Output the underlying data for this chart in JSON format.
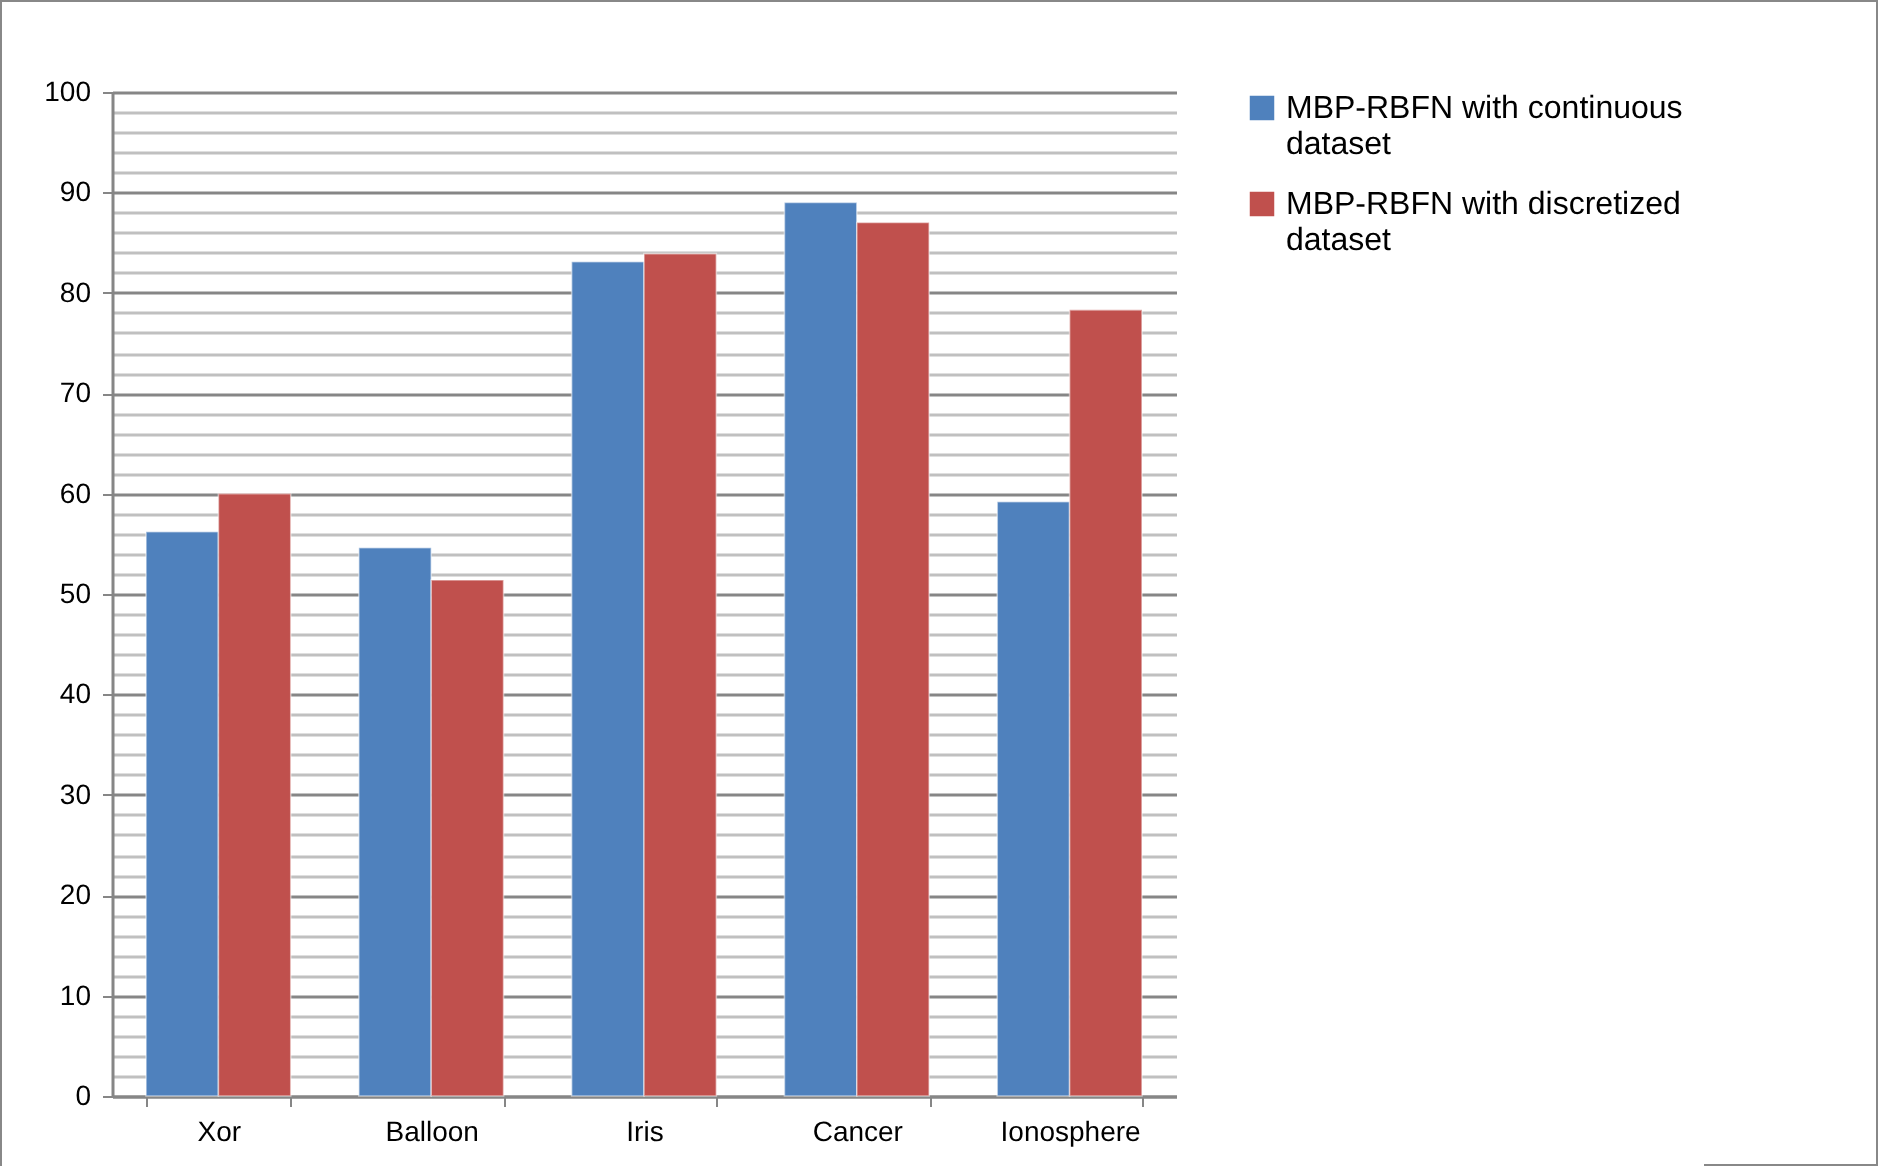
{
  "chart_data": {
    "type": "bar",
    "categories": [
      "Xor",
      "Balloon",
      "Iris",
      "Cancer",
      "Ionosphere"
    ],
    "series": [
      {
        "name": "MBP-RBFN with continuous dataset",
        "color": "#4f81bd",
        "values": [
          56.2,
          54.6,
          83.1,
          89,
          59.2
        ]
      },
      {
        "name": "MBP-RBFN with discretized dataset",
        "color": "#c0504d",
        "values": [
          60,
          51.4,
          83.9,
          87,
          78.3
        ]
      }
    ],
    "ylim": [
      0,
      100
    ],
    "yticks": [
      0,
      {
        "value": 2,
        "label": null
      },
      {
        "value": 4,
        "label": null
      },
      {
        "value": 6,
        "label": null
      },
      {
        "value": 8,
        "label": null
      },
      10,
      {
        "value": 12,
        "label": null
      },
      {
        "value": 14,
        "label": null
      },
      {
        "value": 16,
        "label": null
      },
      {
        "value": 18,
        "label": null
      },
      20,
      {
        "value": 22,
        "label": null
      },
      {
        "value": 24,
        "label": null
      },
      {
        "value": 26,
        "label": null
      },
      {
        "value": 28,
        "label": null
      },
      30,
      {
        "value": 32,
        "label": null
      },
      {
        "value": 34,
        "label": null
      },
      {
        "value": 36,
        "label": null
      },
      {
        "value": 38,
        "label": null
      },
      40,
      {
        "value": 42,
        "label": null
      },
      {
        "value": 44,
        "label": null
      },
      {
        "value": 46,
        "label": null
      },
      {
        "value": 48,
        "label": null
      },
      50,
      {
        "value": 52,
        "label": null
      },
      {
        "value": 54,
        "label": null
      },
      {
        "value": 56,
        "label": null
      },
      {
        "value": 58,
        "label": null
      },
      60,
      {
        "value": 62,
        "label": null
      },
      {
        "value": 64,
        "label": null
      },
      {
        "value": 66,
        "label": null
      },
      {
        "value": 68,
        "label": null
      },
      70,
      {
        "value": 72,
        "label": null
      },
      {
        "value": 74,
        "label": null
      },
      {
        "value": 76,
        "label": null
      },
      {
        "value": 78,
        "label": null
      },
      80,
      {
        "value": 82,
        "label": null
      },
      {
        "value": 84,
        "label": null
      },
      {
        "value": 86,
        "label": null
      },
      {
        "value": 88,
        "label": null
      },
      90,
      {
        "value": 92,
        "label": null
      },
      {
        "value": 94,
        "label": null
      },
      {
        "value": 96,
        "label": null
      },
      {
        "value": 98,
        "label": null
      },
      100
    ],
    "grid": true,
    "legend": "right"
  }
}
